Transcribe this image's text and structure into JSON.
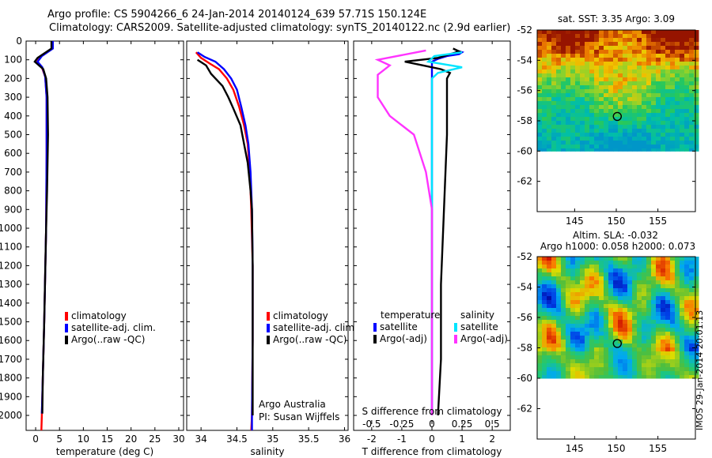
{
  "title_line1": "Argo profile: CS 5904266_6 24-Jan-2014 20140124_639 57.71S 150.124E",
  "title_line2": "Climatology: CARS2009. Satellite-adjusted climatology: synTS_20140122.nc (2.9d earlier)",
  "side_stamp": "IMOS 29-Jan-2014 20:01:13",
  "colors": {
    "climatology": "#ff0000",
    "satellite": "#0000ff",
    "argo": "#000000",
    "sal_satellite": "#00e5ff",
    "sal_argo": "#ff33ff"
  },
  "chart_data": [
    {
      "type": "line",
      "panel": "temperature",
      "xlabel": "temperature (deg C)",
      "xlim": [
        -2,
        31
      ],
      "xticks": [
        0,
        5,
        10,
        15,
        20,
        25,
        30
      ],
      "ylim": [
        0,
        2080
      ],
      "yticks": [
        0,
        100,
        200,
        300,
        400,
        500,
        600,
        700,
        800,
        900,
        1000,
        1100,
        1200,
        1300,
        1400,
        1500,
        1600,
        1700,
        1800,
        1900,
        2000
      ],
      "legend": [
        "climatology",
        "satellite-adj. clim.",
        "Argo(..raw -QC)"
      ],
      "series": [
        {
          "name": "climatology",
          "color": "#ff0000",
          "points": [
            [
              3.4,
              0
            ],
            [
              3.4,
              40
            ],
            [
              1.2,
              80
            ],
            [
              0.3,
              110
            ],
            [
              1.3,
              140
            ],
            [
              2.0,
              190
            ],
            [
              2.3,
              300
            ],
            [
              2.3,
              600
            ],
            [
              2.2,
              1000
            ],
            [
              1.8,
              1500
            ],
            [
              1.5,
              1800
            ],
            [
              1.3,
              2000
            ],
            [
              1.2,
              2080
            ]
          ]
        },
        {
          "name": "satellite-adj. clim.",
          "color": "#0000ff",
          "points": [
            [
              3.6,
              0
            ],
            [
              3.6,
              40
            ],
            [
              1.3,
              80
            ],
            [
              0.4,
              110
            ],
            [
              1.4,
              140
            ],
            [
              2.0,
              190
            ],
            [
              2.3,
              300
            ],
            [
              2.3,
              600
            ],
            [
              2.2,
              1000
            ],
            [
              1.8,
              1500
            ],
            [
              1.5,
              1800
            ],
            [
              1.3,
              1990
            ]
          ]
        },
        {
          "name": "Argo(..raw -QC)",
          "color": "#000000",
          "points": [
            [
              3.3,
              0
            ],
            [
              3.3,
              40
            ],
            [
              0.4,
              90
            ],
            [
              -0.2,
              110
            ],
            [
              1.6,
              150
            ],
            [
              2.2,
              200
            ],
            [
              2.5,
              300
            ],
            [
              2.6,
              500
            ],
            [
              2.4,
              800
            ],
            [
              2.2,
              1000
            ],
            [
              1.8,
              1500
            ],
            [
              1.5,
              1800
            ],
            [
              1.4,
              1990
            ]
          ]
        }
      ]
    },
    {
      "type": "line",
      "panel": "salinity",
      "xlabel": "salinity",
      "xlim": [
        33.8,
        36.05
      ],
      "xticks": [
        34,
        34.5,
        35,
        35.5,
        36
      ],
      "ylim": [
        0,
        2080
      ],
      "legend": [
        "climatology",
        "satellite-adj. clim.",
        "Argo(..raw -QC)"
      ],
      "annotation": [
        "Argo Australia",
        "PI: Susan Wijffels"
      ],
      "series": [
        {
          "name": "climatology",
          "color": "#ff0000",
          "points": [
            [
              33.93,
              60
            ],
            [
              34.0,
              90
            ],
            [
              34.12,
              120
            ],
            [
              34.25,
              150
            ],
            [
              34.36,
              200
            ],
            [
              34.45,
              260
            ],
            [
              34.53,
              350
            ],
            [
              34.6,
              450
            ],
            [
              34.65,
              550
            ],
            [
              34.68,
              700
            ],
            [
              34.7,
              900
            ],
            [
              34.72,
              1200
            ],
            [
              34.72,
              1600
            ],
            [
              34.71,
              2000
            ],
            [
              34.7,
              2080
            ]
          ]
        },
        {
          "name": "satellite-adj. clim.",
          "color": "#0000ff",
          "points": [
            [
              33.95,
              60
            ],
            [
              34.05,
              85
            ],
            [
              34.2,
              110
            ],
            [
              34.32,
              150
            ],
            [
              34.42,
              200
            ],
            [
              34.5,
              260
            ],
            [
              34.56,
              350
            ],
            [
              34.62,
              450
            ],
            [
              34.66,
              550
            ],
            [
              34.69,
              700
            ],
            [
              34.71,
              900
            ],
            [
              34.72,
              1200
            ],
            [
              34.72,
              1600
            ],
            [
              34.71,
              2000
            ],
            [
              34.71,
              2080
            ]
          ]
        },
        {
          "name": "Argo(..raw -QC)",
          "color": "#000000",
          "points": [
            [
              33.95,
              100
            ],
            [
              34.07,
              130
            ],
            [
              34.14,
              175
            ],
            [
              34.3,
              240
            ],
            [
              34.38,
              300
            ],
            [
              34.45,
              360
            ],
            [
              34.55,
              450
            ],
            [
              34.6,
              550
            ],
            [
              34.65,
              650
            ],
            [
              34.69,
              800
            ],
            [
              34.71,
              900
            ],
            [
              34.72,
              1200
            ],
            [
              34.72,
              1600
            ],
            [
              34.72,
              2000
            ]
          ]
        }
      ]
    },
    {
      "type": "line",
      "panel": "difference",
      "xlabel": "T difference from climatology",
      "xlabel_top": "S difference from climatology",
      "xlim": [
        -2.6,
        2.6
      ],
      "xticks": [
        -2,
        -1,
        0,
        1,
        2
      ],
      "xticks_s": [
        -0.5,
        -0.25,
        0,
        0.25,
        0.5
      ],
      "ylim": [
        0,
        2080
      ],
      "legend_temperature_title": "temperature",
      "legend_salinity_title": "salinity",
      "legend": [
        "satellite",
        "Argo(-adj)",
        "satellite",
        "Argo(-adj)"
      ],
      "series": [
        {
          "name": "temperature satellite",
          "color": "#0000ff",
          "points": [
            [
              0.8,
              50
            ],
            [
              1.0,
              60
            ],
            [
              0.9,
              70
            ],
            [
              0.5,
              80
            ],
            [
              0.2,
              95
            ],
            [
              0.0,
              110
            ],
            [
              0.0,
              300
            ],
            [
              0.0,
              2000
            ]
          ]
        },
        {
          "name": "temperature Argo(-adj)",
          "color": "#000000",
          "points": [
            [
              0.7,
              40
            ],
            [
              0.9,
              55
            ],
            [
              0.6,
              70
            ],
            [
              0.2,
              90
            ],
            [
              -0.9,
              110
            ],
            [
              -0.3,
              130
            ],
            [
              0.3,
              150
            ],
            [
              0.6,
              170
            ],
            [
              0.5,
              200
            ],
            [
              0.5,
              500
            ],
            [
              0.4,
              900
            ],
            [
              0.3,
              1300
            ],
            [
              0.3,
              1700
            ],
            [
              0.2,
              2000
            ]
          ]
        },
        {
          "name": "salinity satellite",
          "color": "#00e5ff",
          "points": [
            [
              0.25,
              60
            ],
            [
              0.02,
              80
            ],
            [
              -0.03,
              110
            ],
            [
              0.25,
              140
            ],
            [
              0.05,
              170
            ],
            [
              0.0,
              200
            ],
            [
              0.0,
              500
            ],
            [
              0.0,
              2000
            ]
          ]
        },
        {
          "name": "salinity Argo(-adj)",
          "color": "#ff33ff",
          "points": [
            [
              -0.05,
              50
            ],
            [
              -0.45,
              100
            ],
            [
              -0.35,
              130
            ],
            [
              -0.45,
              180
            ],
            [
              -0.45,
              300
            ],
            [
              -0.35,
              400
            ],
            [
              -0.15,
              500
            ],
            [
              -0.05,
              700
            ],
            [
              0.0,
              900
            ],
            [
              0.0,
              2000
            ]
          ]
        }
      ]
    },
    {
      "type": "heatmap",
      "panel": "sst_map",
      "title": "sat. SST: 3.35 Argo: 3.09",
      "xlim": [
        140.5,
        159.5
      ],
      "ylim": [
        -64,
        -52
      ],
      "xticks": [
        145,
        150,
        155
      ],
      "yticks": [
        -52,
        -54,
        -56,
        -58,
        -60,
        -62
      ],
      "marker": [
        150.124,
        -57.71
      ]
    },
    {
      "type": "heatmap",
      "panel": "sla_map",
      "title_line1": "Altim. SLA: -0.032",
      "title_line2": "Argo h1000: 0.058 h2000: 0.073",
      "xlim": [
        140.5,
        159.5
      ],
      "ylim": [
        -64,
        -52
      ],
      "xticks": [
        145,
        150,
        155
      ],
      "yticks": [
        -52,
        -54,
        -56,
        -58,
        -60,
        -62
      ],
      "marker": [
        150.124,
        -57.71
      ]
    }
  ]
}
